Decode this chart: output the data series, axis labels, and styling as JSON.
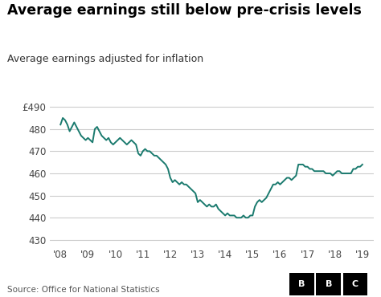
{
  "title": "Average earnings still below pre-crisis levels",
  "subtitle": "Average earnings adjusted for inflation",
  "source": "Source: Office for National Statistics",
  "ylabel_prefix": "£",
  "yticks": [
    430,
    440,
    450,
    460,
    470,
    480,
    490
  ],
  "ylim": [
    427,
    494
  ],
  "xtick_labels": [
    "'08",
    "'09",
    "'10",
    "'11",
    "'12",
    "'13",
    "'14",
    "'15",
    "'16",
    "'17",
    "'18",
    "'19"
  ],
  "line_color": "#1a7a6e",
  "background_color": "#ffffff",
  "title_color": "#000000",
  "subtitle_color": "#333333",
  "source_color": "#555555",
  "grid_color": "#cccccc",
  "x": [
    2008.0,
    2008.083,
    2008.167,
    2008.25,
    2008.333,
    2008.417,
    2008.5,
    2008.583,
    2008.667,
    2008.75,
    2008.833,
    2008.917,
    2009.0,
    2009.083,
    2009.167,
    2009.25,
    2009.333,
    2009.417,
    2009.5,
    2009.583,
    2009.667,
    2009.75,
    2009.833,
    2009.917,
    2010.0,
    2010.083,
    2010.167,
    2010.25,
    2010.333,
    2010.417,
    2010.5,
    2010.583,
    2010.667,
    2010.75,
    2010.833,
    2010.917,
    2011.0,
    2011.083,
    2011.167,
    2011.25,
    2011.333,
    2011.417,
    2011.5,
    2011.583,
    2011.667,
    2011.75,
    2011.833,
    2011.917,
    2012.0,
    2012.083,
    2012.167,
    2012.25,
    2012.333,
    2012.417,
    2012.5,
    2012.583,
    2012.667,
    2012.75,
    2012.833,
    2012.917,
    2013.0,
    2013.083,
    2013.167,
    2013.25,
    2013.333,
    2013.417,
    2013.5,
    2013.583,
    2013.667,
    2013.75,
    2013.833,
    2013.917,
    2014.0,
    2014.083,
    2014.167,
    2014.25,
    2014.333,
    2014.417,
    2014.5,
    2014.583,
    2014.667,
    2014.75,
    2014.833,
    2014.917,
    2015.0,
    2015.083,
    2015.167,
    2015.25,
    2015.333,
    2015.417,
    2015.5,
    2015.583,
    2015.667,
    2015.75,
    2015.833,
    2015.917,
    2016.0,
    2016.083,
    2016.167,
    2016.25,
    2016.333,
    2016.417,
    2016.5,
    2016.583,
    2016.667,
    2016.75,
    2016.833,
    2016.917,
    2017.0,
    2017.083,
    2017.167,
    2017.25,
    2017.333,
    2017.417,
    2017.5,
    2017.583,
    2017.667,
    2017.75,
    2017.833,
    2017.917,
    2018.0,
    2018.083,
    2018.167,
    2018.25,
    2018.333,
    2018.417,
    2018.5,
    2018.583,
    2018.667,
    2018.75,
    2018.833,
    2018.917,
    2019.0
  ],
  "y": [
    482,
    485,
    484,
    482,
    479,
    481,
    483,
    481,
    479,
    477,
    476,
    475,
    476,
    475,
    474,
    480,
    481,
    479,
    477,
    476,
    475,
    476,
    474,
    473,
    474,
    475,
    476,
    475,
    474,
    473,
    474,
    475,
    474,
    473,
    469,
    468,
    470,
    471,
    470,
    470,
    469,
    468,
    468,
    467,
    466,
    465,
    464,
    462,
    458,
    456,
    457,
    456,
    455,
    456,
    455,
    455,
    454,
    453,
    452,
    451,
    447,
    448,
    447,
    446,
    445,
    446,
    445,
    445,
    446,
    444,
    443,
    442,
    441,
    442,
    441,
    441,
    441,
    440,
    440,
    440,
    441,
    440,
    440,
    441,
    441,
    445,
    447,
    448,
    447,
    448,
    449,
    451,
    453,
    455,
    455,
    456,
    455,
    456,
    457,
    458,
    458,
    457,
    458,
    459,
    464,
    464,
    464,
    463,
    463,
    462,
    462,
    461,
    461,
    461,
    461,
    461,
    460,
    460,
    460,
    459,
    460,
    461,
    461,
    460,
    460,
    460,
    460,
    460,
    462,
    462,
    463,
    463,
    464
  ]
}
